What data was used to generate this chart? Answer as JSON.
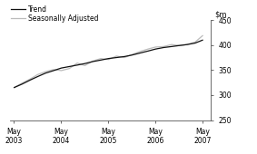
{
  "title": "",
  "ylim": [
    250,
    450
  ],
  "yticks": [
    250,
    300,
    350,
    400,
    450
  ],
  "xlim_start": 2003.25,
  "xlim_end": 2007.5,
  "xtick_positions": [
    2003.33,
    2004.33,
    2005.33,
    2006.33,
    2007.33
  ],
  "xtick_labels": [
    "May\n2003",
    "May\n2004",
    "May\n2005",
    "May\n2006",
    "May\n2007"
  ],
  "trend_color": "#111111",
  "seasonally_adjusted_color": "#bbbbbb",
  "background_color": "#ffffff",
  "legend_entries": [
    "Trend",
    "Seasonally Adjusted"
  ],
  "trend_x": [
    2003.33,
    2003.5,
    2003.67,
    2003.83,
    2004.0,
    2004.17,
    2004.33,
    2004.5,
    2004.67,
    2004.83,
    2005.0,
    2005.17,
    2005.33,
    2005.5,
    2005.67,
    2005.83,
    2006.0,
    2006.17,
    2006.33,
    2006.5,
    2006.67,
    2006.83,
    2007.0,
    2007.17,
    2007.33
  ],
  "trend_y": [
    315,
    322,
    330,
    337,
    344,
    349,
    354,
    357,
    360,
    363,
    367,
    370,
    373,
    375,
    377,
    380,
    384,
    388,
    392,
    395,
    397,
    399,
    401,
    404,
    410
  ],
  "sa_x": [
    2003.33,
    2003.5,
    2003.67,
    2003.83,
    2004.0,
    2004.17,
    2004.33,
    2004.5,
    2004.67,
    2004.83,
    2005.0,
    2005.17,
    2005.33,
    2005.5,
    2005.67,
    2005.83,
    2006.0,
    2006.17,
    2006.33,
    2006.5,
    2006.67,
    2006.83,
    2007.0,
    2007.17,
    2007.33
  ],
  "sa_y": [
    315,
    324,
    332,
    341,
    347,
    351,
    349,
    353,
    364,
    359,
    368,
    373,
    371,
    378,
    375,
    381,
    387,
    392,
    396,
    397,
    401,
    399,
    401,
    406,
    419
  ]
}
